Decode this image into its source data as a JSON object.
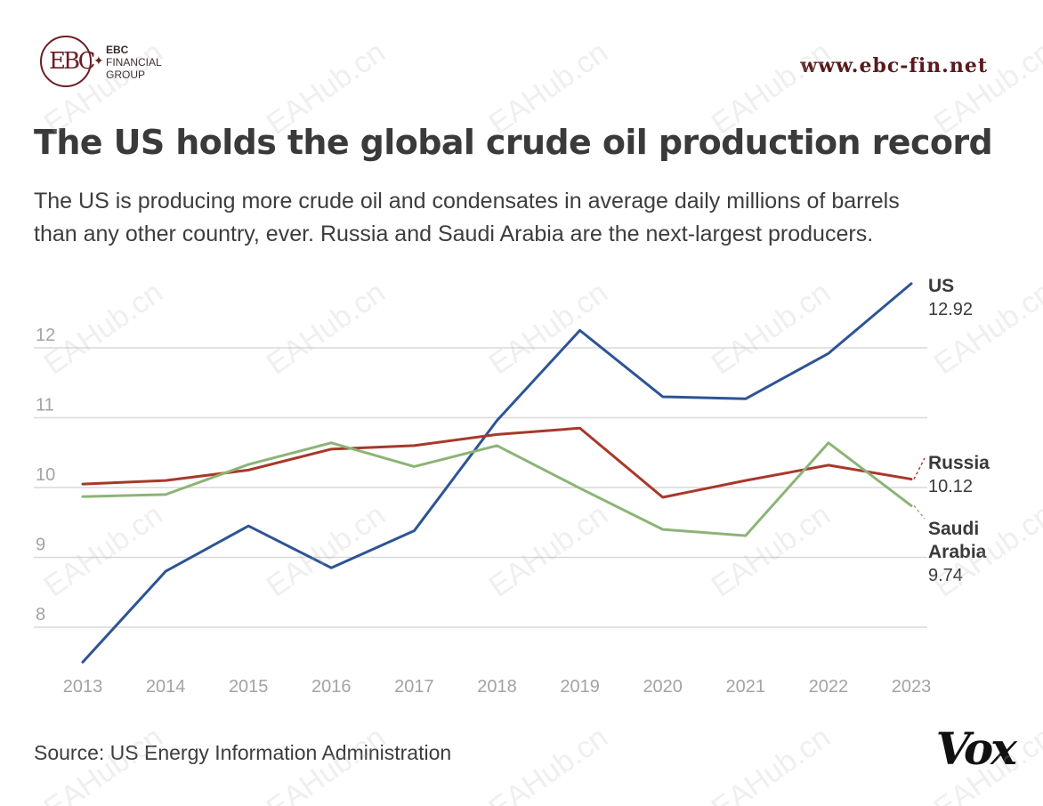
{
  "brand": {
    "logo_mark": "EBC",
    "logo_lines": [
      "EBC",
      "FINANCIAL",
      "GROUP"
    ],
    "website": "www.ebc-fin.net",
    "watermark": "EAHub.cn"
  },
  "title": "The US holds the global crude oil production record",
  "subtitle_lines": [
    "The US is producing more crude oil and condensates in average daily millions of barrels",
    "than any other country, ever. Russia and Saudi Arabia are the next-largest producers."
  ],
  "source": "Source: US Energy Information Administration",
  "publisher": "Vox",
  "chart_data": {
    "type": "line",
    "title": "The US holds the global crude oil production record",
    "xlabel": "",
    "ylabel": "",
    "ylim": [
      7.5,
      13.3
    ],
    "yticks": [
      8,
      9,
      10,
      11,
      12
    ],
    "categories": [
      "2013",
      "2014",
      "2015",
      "2016",
      "2017",
      "2018",
      "2019",
      "2020",
      "2021",
      "2022",
      "2023"
    ],
    "series": [
      {
        "name": "US",
        "label_lines": [
          "US"
        ],
        "final_label": "12.92",
        "color": "#2d5495",
        "values": [
          7.5,
          8.8,
          9.45,
          8.85,
          9.38,
          10.96,
          12.25,
          11.3,
          11.27,
          11.92,
          12.92
        ]
      },
      {
        "name": "Russia",
        "label_lines": [
          "Russia"
        ],
        "final_label": "10.12",
        "color": "#a8382b",
        "values": [
          10.05,
          10.1,
          10.25,
          10.55,
          10.6,
          10.76,
          10.85,
          9.86,
          10.1,
          10.32,
          10.12
        ]
      },
      {
        "name": "Saudi Arabia",
        "label_lines": [
          "Saudi",
          "Arabia"
        ],
        "final_label": "9.74",
        "color": "#8db477",
        "values": [
          9.87,
          9.9,
          10.33,
          10.64,
          10.3,
          10.6,
          9.99,
          9.4,
          9.31,
          10.64,
          9.74
        ]
      }
    ]
  }
}
